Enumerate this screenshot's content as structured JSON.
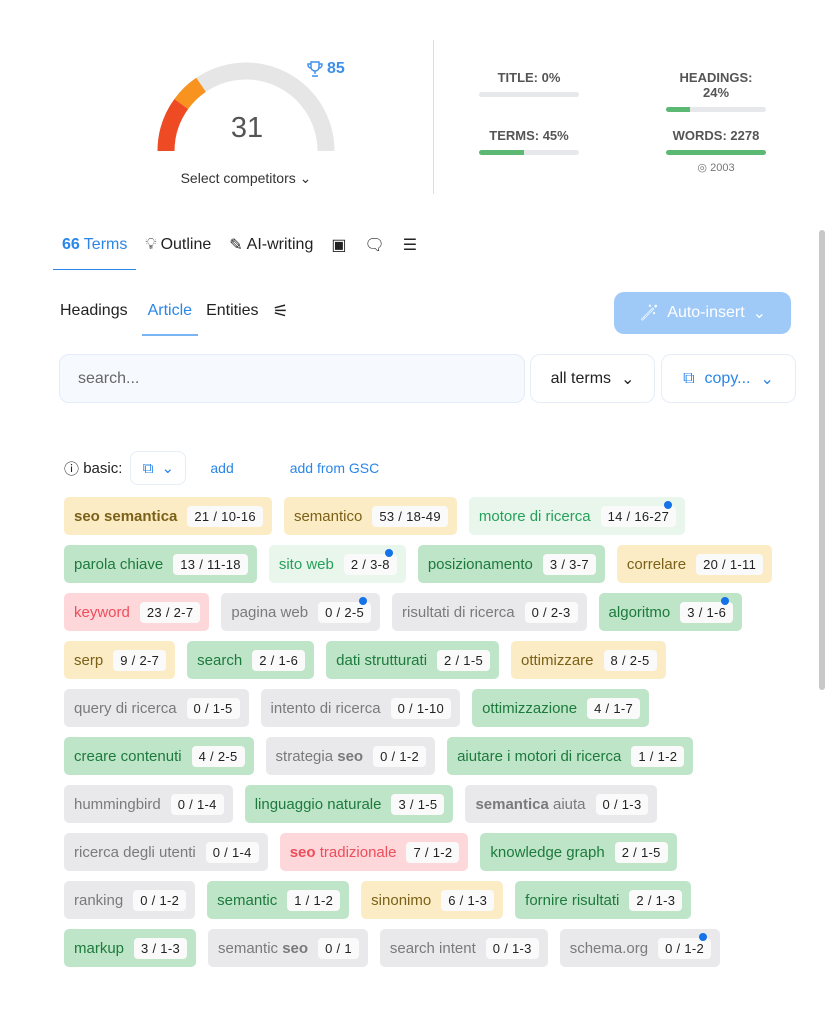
{
  "score": {
    "value": 31,
    "max": 100,
    "target": 85,
    "select_label": "Select competitors",
    "colors": {
      "low": "#ee4b24",
      "mid": "#f7931e",
      "track": "#e6e6e6"
    }
  },
  "metrics": [
    {
      "label": "TITLE: 0%",
      "percent": 0
    },
    {
      "label": "HEADINGS: 24%",
      "percent": 24
    },
    {
      "label": "TERMS: 45%",
      "percent": 45
    },
    {
      "label": "WORDS: 2278",
      "percent": 100,
      "target": "2003"
    }
  ],
  "tabs": [
    {
      "label": "Terms",
      "icon": "quote-icon",
      "active": true
    },
    {
      "label": "Outline",
      "icon": "lightbulb-icon"
    },
    {
      "label": "AI-writing",
      "icon": "pen-icon"
    },
    {
      "label": "",
      "icon": "image-icon"
    },
    {
      "label": "",
      "icon": "chat-icon"
    },
    {
      "label": "",
      "icon": "list-icon"
    }
  ],
  "subtabs": [
    {
      "label": "Headings"
    },
    {
      "label": "Article",
      "active": true
    },
    {
      "label": "Entities"
    }
  ],
  "auto_insert": "Auto-insert",
  "search_placeholder": "search...",
  "filter": "all terms",
  "copy": "copy...",
  "basic": {
    "label": "basic:",
    "add": "add",
    "add_gsc": "add from GSC"
  },
  "terms": [
    {
      "parts": [
        {
          "t": "seo semantica",
          "b": true
        }
      ],
      "count": "21 / 10-16",
      "color": "yellow"
    },
    {
      "parts": [
        {
          "t": "semantico"
        }
      ],
      "count": "53 / 18-49",
      "color": "yellow"
    },
    {
      "parts": [
        {
          "t": "motore di ricerca"
        }
      ],
      "count": "14 / 16-27",
      "color": "lgreen",
      "dot": true
    },
    {
      "parts": [
        {
          "t": "parola chiave"
        }
      ],
      "count": "13 / 11-18",
      "color": "green"
    },
    {
      "parts": [
        {
          "t": "sito web"
        }
      ],
      "count": "2 / 3-8",
      "color": "lgreen",
      "dot": true
    },
    {
      "parts": [
        {
          "t": "posizionamento"
        }
      ],
      "count": "3 / 3-7",
      "color": "green"
    },
    {
      "parts": [
        {
          "t": "correlare"
        }
      ],
      "count": "20 / 1-11",
      "color": "yellow"
    },
    {
      "parts": [
        {
          "t": "keyword"
        }
      ],
      "count": "23 / 2-7",
      "color": "red"
    },
    {
      "parts": [
        {
          "t": "pagina web"
        }
      ],
      "count": "0 / 2-5",
      "color": "gray",
      "dot": true
    },
    {
      "parts": [
        {
          "t": "risultati di ricerca"
        }
      ],
      "count": "0 / 2-3",
      "color": "gray"
    },
    {
      "parts": [
        {
          "t": "algoritmo"
        }
      ],
      "count": "3 / 1-6",
      "color": "green",
      "dot": true
    },
    {
      "parts": [
        {
          "t": "serp"
        }
      ],
      "count": "9 / 2-7",
      "color": "yellow"
    },
    {
      "parts": [
        {
          "t": "search"
        }
      ],
      "count": "2 / 1-6",
      "color": "green"
    },
    {
      "parts": [
        {
          "t": "dati strutturati"
        }
      ],
      "count": "2 / 1-5",
      "color": "green"
    },
    {
      "parts": [
        {
          "t": "ottimizzare"
        }
      ],
      "count": "8 / 2-5",
      "color": "yellow"
    },
    {
      "parts": [
        {
          "t": "query di ricerca"
        }
      ],
      "count": "0 / 1-5",
      "color": "gray"
    },
    {
      "parts": [
        {
          "t": "intento di ricerca"
        }
      ],
      "count": "0 / 1-10",
      "color": "gray"
    },
    {
      "parts": [
        {
          "t": "ottimizzazione"
        }
      ],
      "count": "4 / 1-7",
      "color": "green"
    },
    {
      "parts": [
        {
          "t": "creare contenuti"
        }
      ],
      "count": "4 / 2-5",
      "color": "green"
    },
    {
      "parts": [
        {
          "t": "strategia "
        },
        {
          "t": "seo",
          "b": true
        }
      ],
      "count": "0 / 1-2",
      "color": "gray"
    },
    {
      "parts": [
        {
          "t": "aiutare i motori di ricerca"
        }
      ],
      "count": "1 / 1-2",
      "color": "green"
    },
    {
      "parts": [
        {
          "t": "hummingbird"
        }
      ],
      "count": "0 / 1-4",
      "color": "gray"
    },
    {
      "parts": [
        {
          "t": "linguaggio naturale"
        }
      ],
      "count": "3 / 1-5",
      "color": "green"
    },
    {
      "parts": [
        {
          "t": "semantica",
          "b": true
        },
        {
          "t": " aiuta"
        }
      ],
      "count": "0 / 1-3",
      "color": "gray"
    },
    {
      "parts": [
        {
          "t": "ricerca degli utenti"
        }
      ],
      "count": "0 / 1-4",
      "color": "gray"
    },
    {
      "parts": [
        {
          "t": "seo",
          "b": true
        },
        {
          "t": " tradizionale"
        }
      ],
      "count": "7 / 1-2",
      "color": "red"
    },
    {
      "parts": [
        {
          "t": "knowledge graph"
        }
      ],
      "count": "2 / 1-5",
      "color": "green"
    },
    {
      "parts": [
        {
          "t": "ranking"
        }
      ],
      "count": "0 / 1-2",
      "color": "gray"
    },
    {
      "parts": [
        {
          "t": "semantic"
        }
      ],
      "count": "1 / 1-2",
      "color": "green"
    },
    {
      "parts": [
        {
          "t": "sinonimo"
        }
      ],
      "count": "6 / 1-3",
      "color": "yellow"
    },
    {
      "parts": [
        {
          "t": "fornire risultati"
        }
      ],
      "count": "2 / 1-3",
      "color": "green"
    },
    {
      "parts": [
        {
          "t": "markup"
        }
      ],
      "count": "3 / 1-3",
      "color": "green"
    },
    {
      "parts": [
        {
          "t": "semantic "
        },
        {
          "t": "seo",
          "b": true
        }
      ],
      "count": "0 / 1",
      "color": "gray"
    },
    {
      "parts": [
        {
          "t": "search intent"
        }
      ],
      "count": "0 / 1-3",
      "color": "gray"
    },
    {
      "parts": [
        {
          "t": "schema.org"
        }
      ],
      "count": "0 / 1-2",
      "color": "gray",
      "dot": true
    }
  ]
}
